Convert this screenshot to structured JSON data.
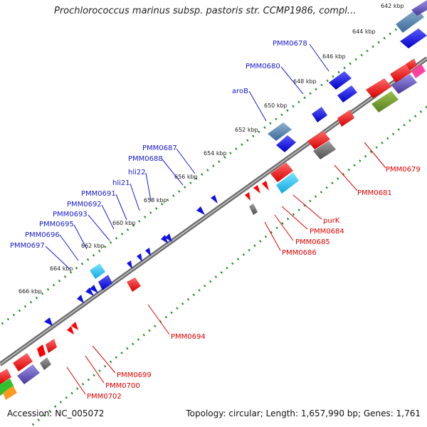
{
  "title": "Prochlorococcus marinus subsp. pastoris str. CCMP1986, compl...",
  "footer": {
    "accession": "Accession: NC_005072",
    "topology": "Topology: circular; Length: 1,657,990 bp; Genes: 1,761"
  },
  "colors": {
    "forward": "#1010e8",
    "reverse": "#ff0000",
    "backbone": "#7a7a7a",
    "tick_dots": "#1e8c1e",
    "top_label": "#1a1ad0",
    "bottom_label": "#e00000"
  },
  "kbp_ticks": [
    "642 kbp",
    "644 kbp",
    "646 kbp",
    "648 kbp",
    "650 kbp",
    "652 kbp",
    "654 kbp",
    "656 kbp",
    "658 kbp",
    "660 kbp",
    "662 kbp",
    "664 kbp",
    "666 kbp"
  ],
  "top_genes": [
    "PMM0678",
    "PMM0680",
    "aroB",
    "PMM0687",
    "PMM0688",
    "hli22",
    "hli21",
    "PMM0691",
    "PMM0692",
    "PMM0693",
    "PMM0695",
    "PMM0696",
    "PMM0697"
  ],
  "bottom_genes": [
    "PMM0679",
    "PMM0681",
    "purK",
    "PMM0684",
    "PMM0685",
    "PMM0686",
    "PMM0694",
    "PMM0699",
    "PMM0700",
    "PMM0702"
  ]
}
